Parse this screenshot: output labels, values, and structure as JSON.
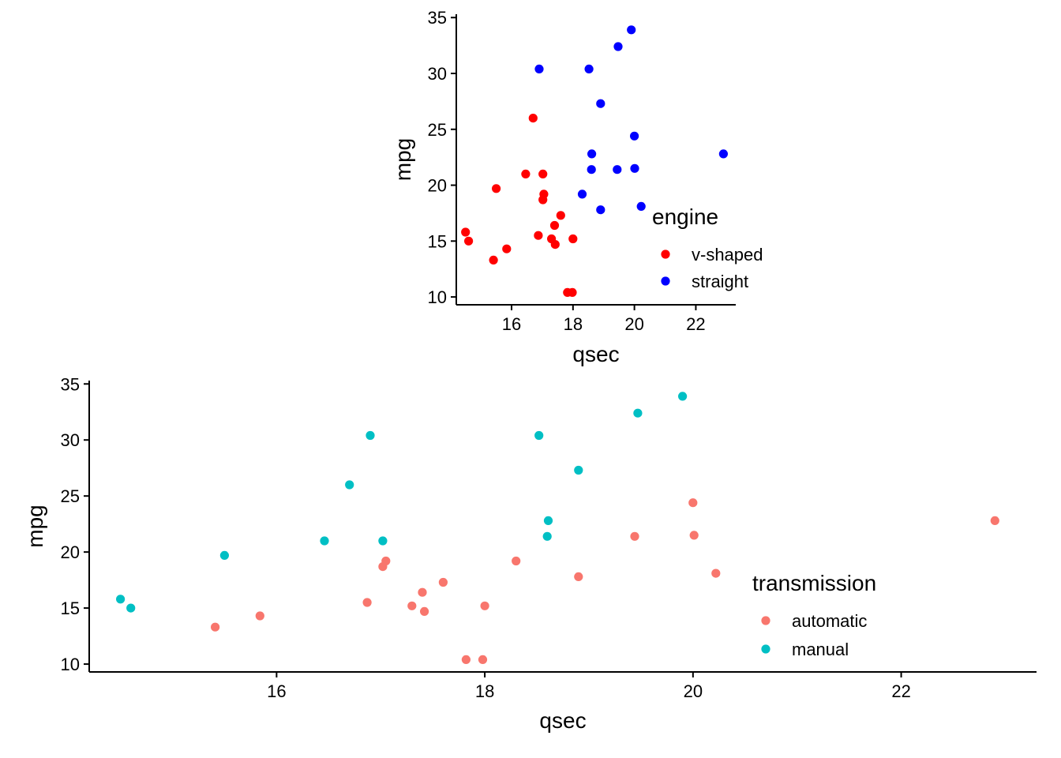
{
  "chart_data": [
    {
      "type": "scatter",
      "xlabel": "qsec",
      "ylabel": "mpg",
      "xlim": [
        14.2,
        23.3
      ],
      "ylim": [
        9.3,
        35.3
      ],
      "xticks": [
        16,
        18,
        20,
        22
      ],
      "yticks": [
        10,
        15,
        20,
        25,
        30,
        35
      ],
      "grid": false,
      "legend": {
        "title": "engine",
        "placement": "right-inside"
      },
      "series": [
        {
          "name": "v-shaped",
          "color": "#ff0000",
          "points": [
            [
              16.46,
              21.0
            ],
            [
              17.02,
              21.0
            ],
            [
              17.02,
              18.7
            ],
            [
              15.84,
              14.3
            ],
            [
              17.4,
              16.4
            ],
            [
              17.6,
              17.3
            ],
            [
              18.0,
              15.2
            ],
            [
              17.98,
              10.4
            ],
            [
              17.82,
              10.4
            ],
            [
              17.42,
              14.7
            ],
            [
              16.87,
              15.5
            ],
            [
              17.3,
              15.2
            ],
            [
              15.41,
              13.3
            ],
            [
              17.05,
              19.2
            ],
            [
              16.7,
              26.0
            ],
            [
              14.5,
              15.8
            ],
            [
              15.5,
              19.7
            ],
            [
              14.6,
              15.0
            ]
          ]
        },
        {
          "name": "straight",
          "color": "#0000ff",
          "points": [
            [
              18.61,
              22.8
            ],
            [
              19.44,
              21.4
            ],
            [
              20.22,
              18.1
            ],
            [
              20.0,
              24.4
            ],
            [
              22.9,
              22.8
            ],
            [
              18.3,
              19.2
            ],
            [
              18.9,
              17.8
            ],
            [
              19.47,
              32.4
            ],
            [
              18.52,
              30.4
            ],
            [
              19.9,
              33.9
            ],
            [
              20.01,
              21.5
            ],
            [
              18.9,
              27.3
            ],
            [
              16.9,
              30.4
            ],
            [
              18.6,
              21.4
            ]
          ]
        }
      ]
    },
    {
      "type": "scatter",
      "xlabel": "qsec",
      "ylabel": "mpg",
      "xlim": [
        14.2,
        23.3
      ],
      "ylim": [
        9.3,
        35.3
      ],
      "xticks": [
        16,
        18,
        20,
        22
      ],
      "yticks": [
        10,
        15,
        20,
        25,
        30,
        35
      ],
      "grid": false,
      "legend": {
        "title": "transmission",
        "placement": "right-inside"
      },
      "series": [
        {
          "name": "automatic",
          "color": "#f8766d",
          "points": [
            [
              19.44,
              21.4
            ],
            [
              17.02,
              18.7
            ],
            [
              20.22,
              18.1
            ],
            [
              15.84,
              14.3
            ],
            [
              20.0,
              24.4
            ],
            [
              22.9,
              22.8
            ],
            [
              18.3,
              19.2
            ],
            [
              18.9,
              17.8
            ],
            [
              17.4,
              16.4
            ],
            [
              17.6,
              17.3
            ],
            [
              18.0,
              15.2
            ],
            [
              17.98,
              10.4
            ],
            [
              17.82,
              10.4
            ],
            [
              17.42,
              14.7
            ],
            [
              20.01,
              21.5
            ],
            [
              16.87,
              15.5
            ],
            [
              17.3,
              15.2
            ],
            [
              15.41,
              13.3
            ],
            [
              17.05,
              19.2
            ]
          ]
        },
        {
          "name": "manual",
          "color": "#00bfc4",
          "points": [
            [
              16.46,
              21.0
            ],
            [
              17.02,
              21.0
            ],
            [
              18.61,
              22.8
            ],
            [
              19.47,
              32.4
            ],
            [
              18.52,
              30.4
            ],
            [
              19.9,
              33.9
            ],
            [
              18.9,
              27.3
            ],
            [
              16.7,
              26.0
            ],
            [
              16.9,
              30.4
            ],
            [
              14.5,
              15.8
            ],
            [
              15.5,
              19.7
            ],
            [
              14.6,
              15.0
            ],
            [
              18.6,
              21.4
            ]
          ]
        }
      ]
    }
  ]
}
